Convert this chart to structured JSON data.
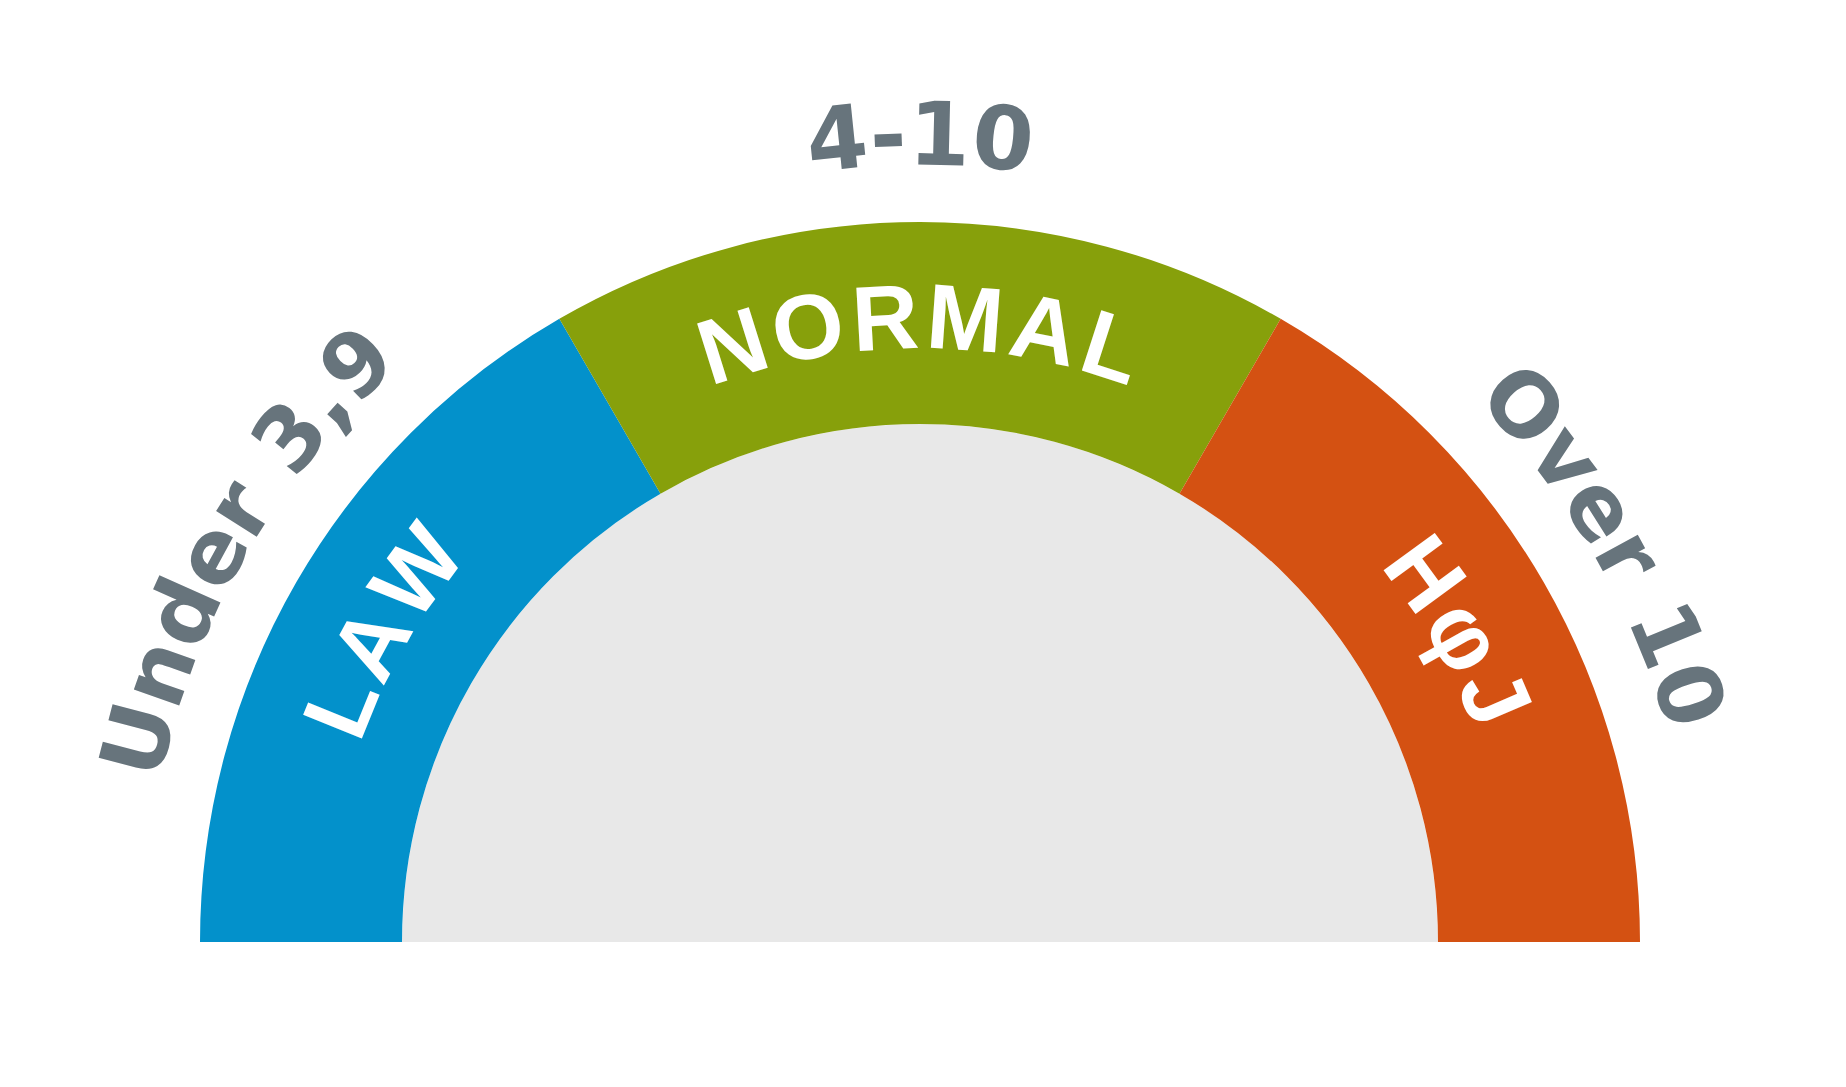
{
  "chart_data": {
    "type": "donut",
    "categories": [
      "LAW",
      "NORMAL",
      "HφJ"
    ],
    "values": [
      33.3,
      33.4,
      33.3
    ],
    "colors": [
      "#0391cb",
      "#87a00b",
      "#d45112"
    ],
    "annotations": [
      "Under 3,9",
      "4-10",
      "Over 10"
    ]
  }
}
